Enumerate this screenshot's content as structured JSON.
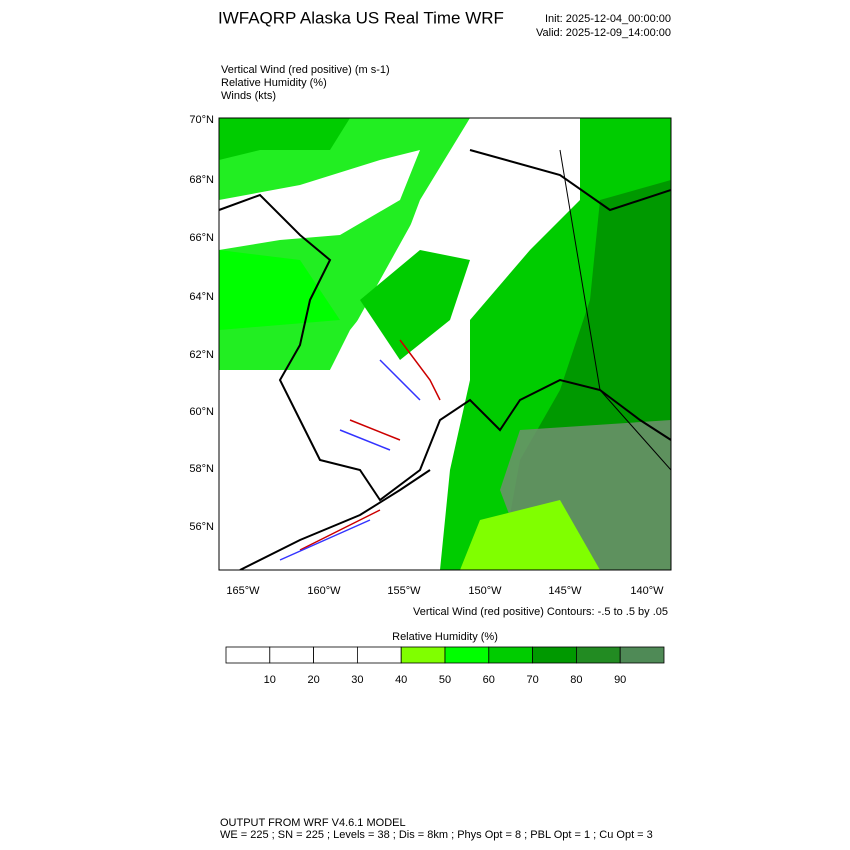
{
  "header": {
    "title": "IWFAQRP Alaska US Real Time WRF",
    "init": "Init: 2025-12-04_00:00:00",
    "valid": "Valid: 2025-12-09_14:00:00"
  },
  "fields": [
    "Vertical Wind (red positive)   (m s-1)",
    "Relative Humidity   (%)",
    "Winds   (kts)"
  ],
  "map": {
    "lat_labels": [
      "70°N",
      "68°N",
      "66°N",
      "64°N",
      "62°N",
      "60°N",
      "58°N",
      "56°N"
    ],
    "lon_labels": [
      "165°W",
      "160°W",
      "155°W",
      "150°W",
      "145°W",
      "140°W"
    ],
    "contour_note": "Vertical Wind (red positive) Contours: -.5 to .5 by .05"
  },
  "colorbar": {
    "title": "Relative Humidity  (%)",
    "colors": [
      "#ffffff",
      "#ffffff",
      "#ffffff",
      "#ffffff",
      "#80ff00",
      "#00ff00",
      "#00cc00",
      "#009900",
      "#228b22",
      "#4f8a56"
    ],
    "ticks": [
      10,
      20,
      30,
      40,
      50,
      60,
      70,
      80,
      90
    ]
  },
  "footer": {
    "line1": "OUTPUT FROM WRF V4.6.1 MODEL",
    "line2": "WE = 225 ; SN = 225 ; Levels = 38 ; Dis = 8km ; Phys Opt = 8 ; PBL Opt = 1 ; Cu Opt = 3"
  }
}
